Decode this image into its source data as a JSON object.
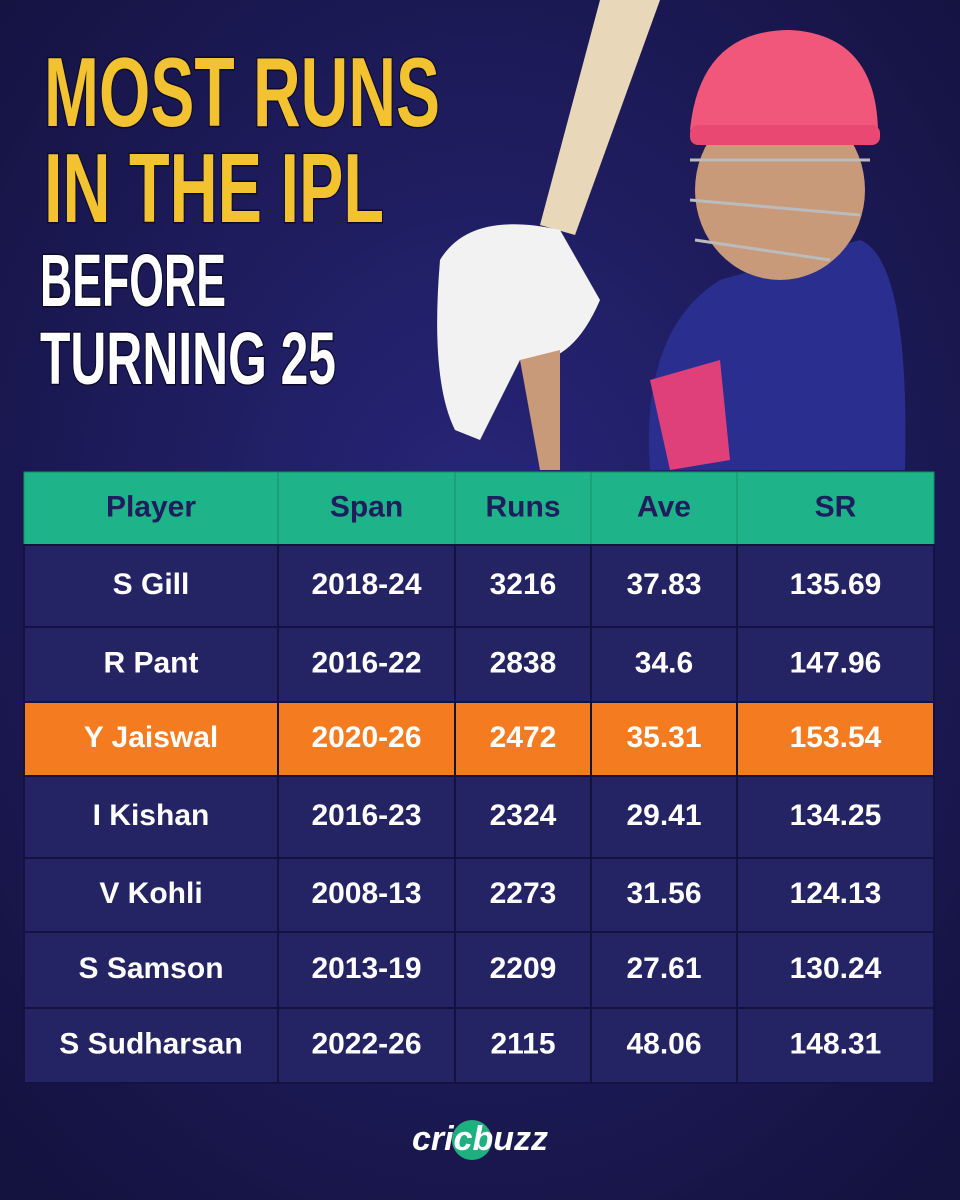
{
  "header": {
    "title_lines": [
      "MOST RUNS",
      "IN THE IPL"
    ],
    "subtitle_lines": [
      "BEFORE",
      "TURNING 25"
    ]
  },
  "table": {
    "columns": [
      "Player",
      "Span",
      "Runs",
      "Ave",
      "SR"
    ],
    "rows": [
      [
        "S Gill",
        "2018-24",
        "3216",
        "37.83",
        "135.69"
      ],
      [
        "R Pant",
        "2016-22",
        "2838",
        "34.6",
        "147.96"
      ],
      [
        "Y Jaiswal",
        "2020-26",
        "2472",
        "35.31",
        "153.54"
      ],
      [
        "I Kishan",
        "2016-23",
        "2324",
        "29.41",
        "134.25"
      ],
      [
        "V Kohli",
        "2008-13",
        "2273",
        "31.56",
        "124.13"
      ],
      [
        "S Samson",
        "2013-19",
        "2209",
        "27.61",
        "130.24"
      ],
      [
        "S Sudharsan",
        "2022-26",
        "2115",
        "48.06",
        "148.31"
      ]
    ],
    "highlight_row": 2,
    "highlight_color": "#f47b20"
  },
  "footer": {
    "brand": "cricbuzz"
  }
}
